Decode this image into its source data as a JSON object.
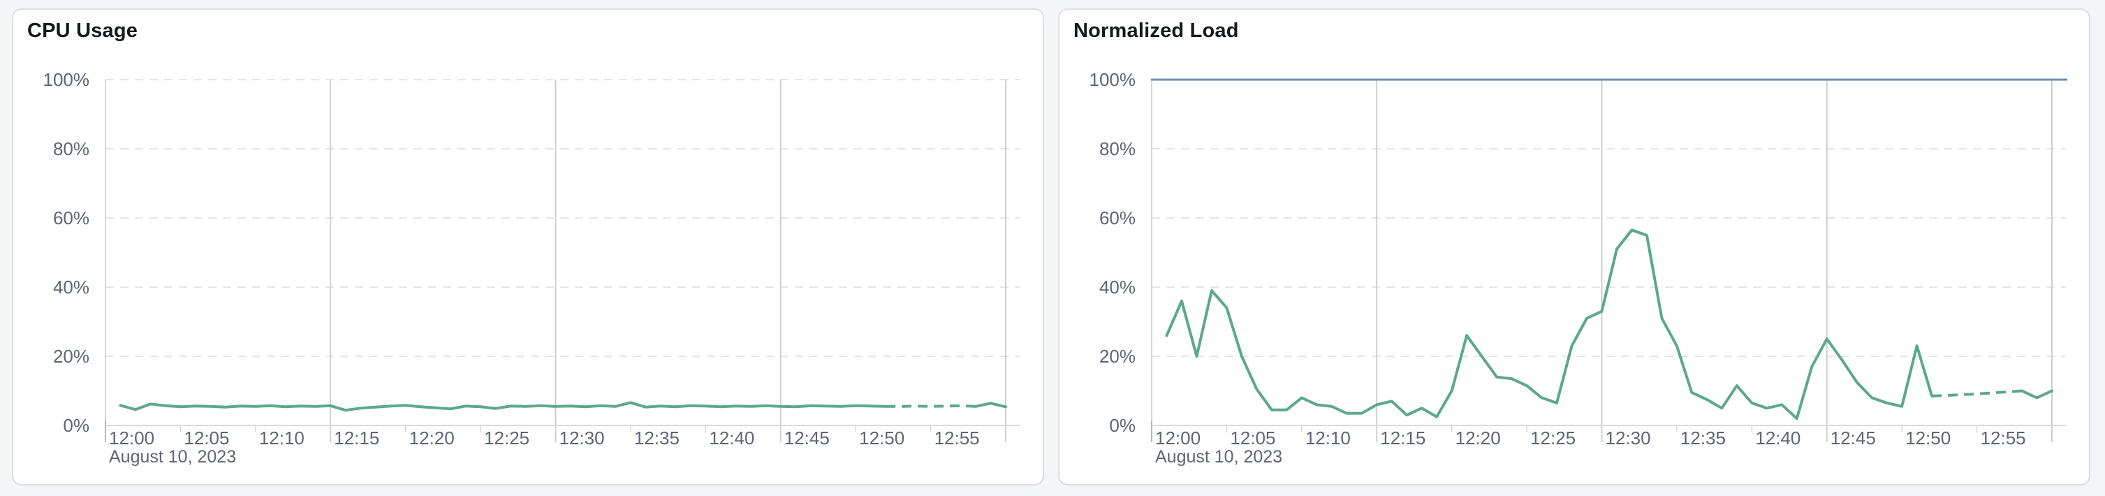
{
  "page_background": "#f4f5f6",
  "panel_style": {
    "background": "#ffffff",
    "border_color": "#d9dee8"
  },
  "axis_text_color": "#5d6673",
  "grid_colors": {
    "v_major": "#c8cbd0",
    "h_dashed": "#e2e5ea",
    "axis_line": "#d7dade",
    "minor_tick": "#d5d8db",
    "origin_tick": "#aab0b8"
  },
  "chart_data": [
    {
      "type": "line",
      "title": "CPU Usage",
      "date_label": "August 10, 2023",
      "x_tick_labels": [
        "12:00",
        "12:05",
        "12:10",
        "12:15",
        "12:20",
        "12:25",
        "12:30",
        "12:35",
        "12:40",
        "12:45",
        "12:50",
        "12:55"
      ],
      "y_tick_labels": [
        "0%",
        "20%",
        "40%",
        "60%",
        "80%",
        "100%"
      ],
      "ylim": [
        0,
        100
      ],
      "x_axis_minutes": [
        0,
        61
      ],
      "grid": {
        "h_dashed_pcts": [
          20,
          40,
          60,
          80,
          100
        ],
        "v_major_minutes": [
          15,
          30,
          45,
          60
        ],
        "minor_tick_minutes": [
          0,
          5,
          10,
          20,
          25,
          35,
          40,
          50,
          55
        ]
      },
      "limit_line": null,
      "series": [
        {
          "name": "cpu-usage",
          "color": "#5da88b",
          "start_minute": 1,
          "dashed_minute_range": [
            52,
            58
          ],
          "values": [
            5.8,
            4.6,
            6.2,
            5.7,
            5.4,
            5.6,
            5.5,
            5.3,
            5.6,
            5.5,
            5.7,
            5.4,
            5.6,
            5.5,
            5.7,
            4.4,
            5.0,
            5.3,
            5.6,
            5.8,
            5.4,
            5.1,
            4.8,
            5.6,
            5.4,
            4.9,
            5.6,
            5.5,
            5.7,
            5.5,
            5.6,
            5.4,
            5.7,
            5.5,
            6.6,
            5.3,
            5.6,
            5.4,
            5.7,
            5.6,
            5.4,
            5.6,
            5.5,
            5.7,
            5.5,
            5.4,
            5.7,
            5.6,
            5.5,
            5.7,
            5.6,
            5.5,
            5.5,
            5.6,
            5.5,
            5.6,
            5.7,
            5.5,
            6.4,
            5.4
          ]
        }
      ]
    },
    {
      "type": "line",
      "title": "Normalized Load",
      "date_label": "August 10, 2023",
      "x_tick_labels": [
        "12:00",
        "12:05",
        "12:10",
        "12:15",
        "12:20",
        "12:25",
        "12:30",
        "12:35",
        "12:40",
        "12:45",
        "12:50",
        "12:55"
      ],
      "y_tick_labels": [
        "0%",
        "20%",
        "40%",
        "60%",
        "80%",
        "100%"
      ],
      "ylim": [
        0,
        100
      ],
      "x_axis_minutes": [
        0,
        61
      ],
      "grid": {
        "h_dashed_pcts": [
          20,
          40,
          60,
          80
        ],
        "v_major_minutes": [
          15,
          30,
          45,
          60
        ],
        "minor_tick_minutes": [
          0,
          5,
          10,
          20,
          25,
          35,
          40,
          50,
          55
        ]
      },
      "limit_line": {
        "value": 100,
        "color": "#6e8eb8"
      },
      "series": [
        {
          "name": "normalized-load",
          "color": "#5da88b",
          "start_minute": 1,
          "dashed_minute_range": [
            52,
            58
          ],
          "values": [
            26,
            36,
            20,
            39,
            34,
            20,
            10.5,
            4.5,
            4.5,
            8,
            6,
            5.5,
            3.5,
            3.5,
            6,
            7,
            3,
            5,
            2.5,
            10,
            26,
            20,
            14,
            13.5,
            11.5,
            8,
            6.5,
            23,
            31,
            33,
            51,
            56.5,
            55,
            31,
            23,
            9.5,
            7.5,
            5,
            11.5,
            6.5,
            5,
            6,
            2,
            17,
            25,
            19,
            12.5,
            8,
            6.5,
            5.5,
            23,
            8.5,
            8.7,
            8.9,
            9.1,
            9.4,
            9.7,
            10,
            8,
            10
          ]
        }
      ]
    }
  ]
}
